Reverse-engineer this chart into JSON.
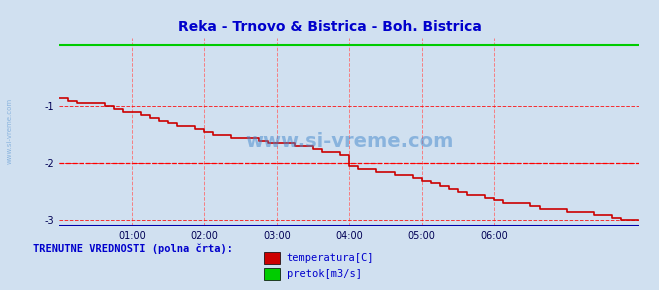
{
  "title": "Reka - Trnovo & Bistrica - Boh. Bistrica",
  "title_color": "#0000cc",
  "bg_color": "#d0e0f0",
  "plot_bg_color": "#d0e0f0",
  "grid_color_h": "#ff0000",
  "grid_color_v": "#ff6666",
  "xlabel": "",
  "ylabel": "",
  "xlim": [
    0,
    384
  ],
  "ylim": [
    -3.1,
    0.2
  ],
  "yticks": [
    -3,
    -2,
    -1
  ],
  "xtick_labels": [
    "01:00",
    "02:00",
    "03:00",
    "04:00",
    "05:00",
    "06:00"
  ],
  "xtick_positions": [
    48,
    96,
    144,
    192,
    240,
    288
  ],
  "temp_color": "#cc0000",
  "flow_color": "#00cc00",
  "axis_color": "#0000aa",
  "watermark": "www.si-vreme.com",
  "watermark_color": "#4488cc",
  "legend_label": "TRENUTNE VREDNOSTI (polna črta):",
  "legend_color": "#0000cc",
  "legend_items": [
    "temperatura[C]",
    "pretok[m3/s]"
  ],
  "legend_item_colors": [
    "#cc0000",
    "#00cc00"
  ],
  "temp_data_x": [
    0,
    6,
    6,
    12,
    12,
    18,
    18,
    24,
    24,
    30,
    30,
    36,
    36,
    42,
    42,
    48,
    48,
    54,
    54,
    60,
    60,
    66,
    66,
    72,
    72,
    78,
    78,
    84,
    84,
    90,
    90,
    96,
    96,
    102,
    102,
    108,
    108,
    114,
    114,
    120,
    120,
    126,
    126,
    132,
    132,
    138,
    138,
    144,
    144,
    150,
    150,
    156,
    156,
    162,
    162,
    168,
    168,
    174,
    174,
    180,
    180,
    186,
    186,
    192,
    192,
    198,
    198,
    204,
    204,
    210,
    210,
    216,
    216,
    222,
    222,
    228,
    228,
    234,
    234,
    240,
    240,
    246,
    246,
    252,
    252,
    258,
    258,
    264,
    264,
    270,
    270,
    276,
    276,
    282,
    282,
    288,
    288,
    294,
    294,
    300,
    300,
    306,
    306,
    312,
    312,
    318,
    318,
    324,
    324,
    330,
    330,
    336,
    336,
    342,
    342,
    348,
    348,
    354,
    354,
    360,
    360,
    366,
    366,
    372,
    372,
    378,
    378,
    383
  ],
  "temp_data_y": [
    -0.85,
    -0.85,
    -0.9,
    -0.9,
    -0.95,
    -0.95,
    -0.95,
    -0.95,
    -0.95,
    -0.95,
    -1.0,
    -1.0,
    -1.05,
    -1.05,
    -1.1,
    -1.1,
    -1.1,
    -1.1,
    -1.15,
    -1.15,
    -1.2,
    -1.2,
    -1.25,
    -1.25,
    -1.3,
    -1.3,
    -1.35,
    -1.35,
    -1.35,
    -1.35,
    -1.4,
    -1.4,
    -1.45,
    -1.45,
    -1.5,
    -1.5,
    -1.5,
    -1.5,
    -1.55,
    -1.55,
    -1.55,
    -1.55,
    -1.55,
    -1.55,
    -1.6,
    -1.6,
    -1.65,
    -1.65,
    -1.65,
    -1.65,
    -1.65,
    -1.65,
    -1.7,
    -1.7,
    -1.7,
    -1.7,
    -1.75,
    -1.75,
    -1.8,
    -1.8,
    -1.8,
    -1.8,
    -1.85,
    -1.85,
    -2.05,
    -2.05,
    -2.1,
    -2.1,
    -2.1,
    -2.1,
    -2.15,
    -2.15,
    -2.15,
    -2.15,
    -2.2,
    -2.2,
    -2.2,
    -2.2,
    -2.25,
    -2.25,
    -2.3,
    -2.3,
    -2.35,
    -2.35,
    -2.4,
    -2.4,
    -2.45,
    -2.45,
    -2.5,
    -2.5,
    -2.55,
    -2.55,
    -2.55,
    -2.55,
    -2.6,
    -2.6,
    -2.65,
    -2.65,
    -2.7,
    -2.7,
    -2.7,
    -2.7,
    -2.7,
    -2.7,
    -2.75,
    -2.75,
    -2.8,
    -2.8,
    -2.8,
    -2.8,
    -2.8,
    -2.8,
    -2.85,
    -2.85,
    -2.85,
    -2.85,
    -2.85,
    -2.85,
    -2.9,
    -2.9,
    -2.9,
    -2.9,
    -2.95,
    -2.95,
    -3.0,
    -3.0,
    -3.0,
    -3.0
  ],
  "flow_y": 0.08,
  "dashed_line_y": -2.0,
  "dashed_line_color": "#ff0000"
}
